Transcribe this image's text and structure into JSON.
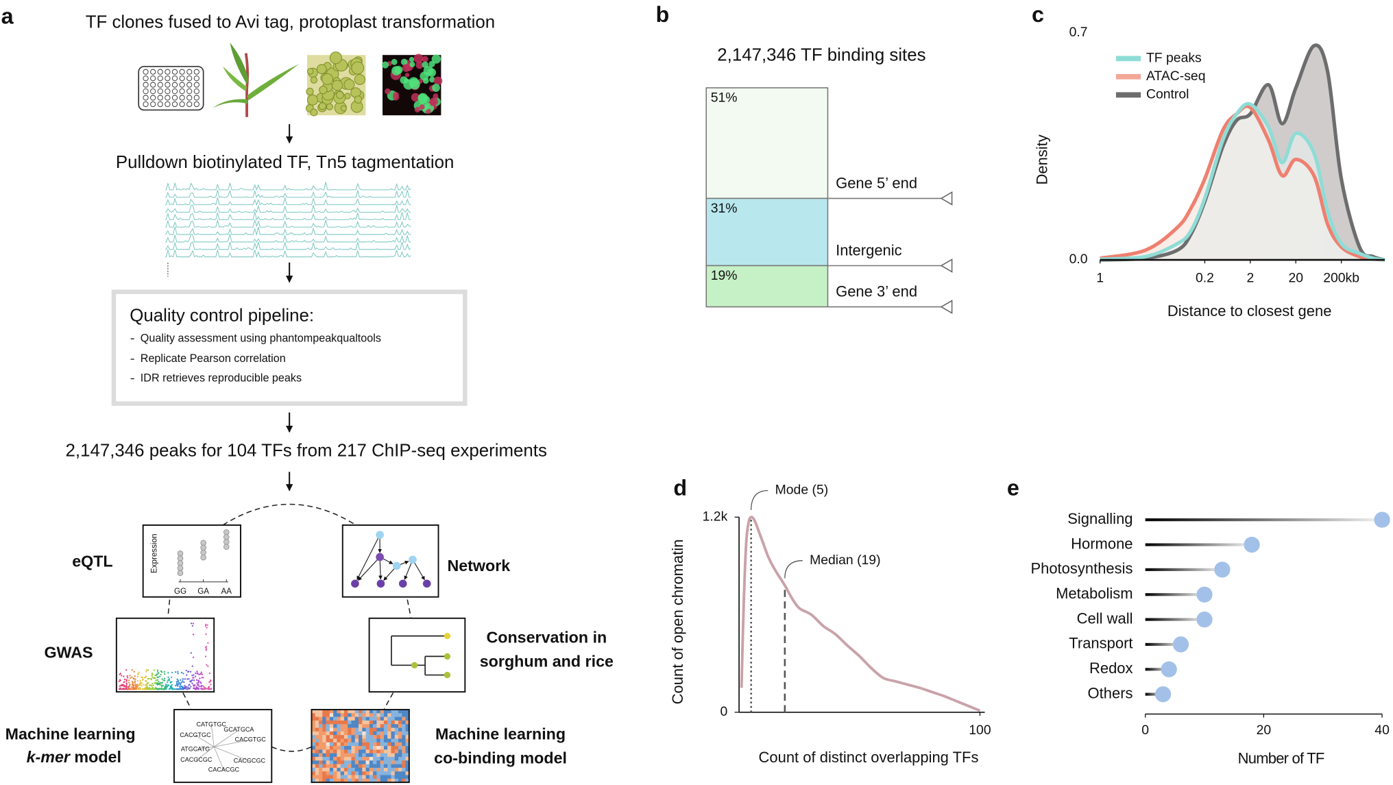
{
  "panel_labels": [
    "a",
    "b",
    "c",
    "d",
    "e"
  ],
  "workflow": {
    "steps": [
      "TF clones fused to Avi tag, protoplast transformation",
      "Pulldown biotinylated TF, Tn5 tagmentation"
    ],
    "qc": {
      "title": "Quality control pipeline:",
      "items": [
        "Quality assessment using phantompeakqualtools",
        "Replicate Pearson correlation",
        "IDR retrieves reproducible peaks"
      ]
    },
    "summary": "2,147,346 peaks for 104 TFs from 217 ChIP-seq experiments",
    "applications": {
      "eqtl": "eQTL",
      "network": "Network",
      "gwas": "GWAS",
      "conservation": [
        "Conservation in",
        "sorghum and rice"
      ],
      "kmer": {
        "line1": "Machine learning",
        "italic": "k-mer",
        "rest": " model"
      },
      "cobinding": [
        "Machine learning",
        "co-binding model"
      ]
    },
    "eqtl_inset": {
      "y_label": "Expression",
      "genotypes": [
        "GG",
        "GA",
        "AA"
      ]
    },
    "kmers": [
      "CATGTGC",
      "CACGTGC",
      "GCATGCA",
      "CACGTGC",
      "ATGCATG",
      "CACGCGC",
      "CACGCGC",
      "CACACGC"
    ]
  },
  "chart_data": [
    {
      "type": "stacked_box",
      "title": "2,147,346 TF binding sites",
      "categories": [
        "Gene 5’ end",
        "Intergenic",
        "Gene 3’ end"
      ],
      "values": [
        51,
        31,
        19
      ],
      "value_labels": [
        "51%",
        "31%",
        "19%"
      ],
      "colors": [
        "#f2faf1",
        "#b8e8ee",
        "#c6f0c6"
      ]
    },
    {
      "type": "density",
      "xlabel": "Distance to closest gene",
      "ylabel": "Density",
      "xscale": "log",
      "xlim": [
        1,
        1800000
      ],
      "xticks": [
        1,
        {
          "value": 200,
          "label": "0.2"
        },
        {
          "value": 2000,
          "label": "2"
        },
        {
          "value": 20000,
          "label": "20"
        },
        {
          "value": 200000,
          "label": "200kb"
        }
      ],
      "ylim": [
        0,
        0.7
      ],
      "yticks": [
        {
          "value": 0,
          "label": "0.0"
        },
        0.7
      ],
      "x": [
        1,
        10,
        50,
        100,
        200,
        500,
        1000,
        2000,
        5000,
        10000,
        20000,
        50000,
        100000,
        200000,
        500000,
        1000000,
        1800000
      ],
      "legend": "upper left",
      "series": [
        {
          "name": "TF peaks",
          "color": "#8fdcd6",
          "values": [
            0.002,
            0.01,
            0.05,
            0.09,
            0.19,
            0.37,
            0.45,
            0.48,
            0.41,
            0.3,
            0.39,
            0.33,
            0.15,
            0.05,
            0.02,
            0.005,
            0
          ]
        },
        {
          "name": "ATAC-seq",
          "color": "#f3a898",
          "values": [
            0.005,
            0.03,
            0.1,
            0.16,
            0.25,
            0.4,
            0.45,
            0.47,
            0.37,
            0.26,
            0.31,
            0.26,
            0.11,
            0.04,
            0.01,
            0.003,
            0
          ]
        },
        {
          "name": "Control",
          "color": "#6d6d6d",
          "values": [
            0,
            0.005,
            0.03,
            0.08,
            0.18,
            0.35,
            0.43,
            0.45,
            0.54,
            0.42,
            0.53,
            0.66,
            0.58,
            0.25,
            0.04,
            0.01,
            0
          ]
        }
      ]
    },
    {
      "type": "line",
      "xlabel": "Count of distinct overlapping TFs",
      "ylabel": "Count of open chromatin",
      "xlim": [
        0,
        102
      ],
      "xticks": [
        100
      ],
      "ylim": [
        0,
        1200
      ],
      "yticks": [
        0,
        {
          "value": 1200,
          "label": "1.2k"
        }
      ],
      "x": [
        1,
        2,
        3,
        4,
        5,
        6,
        7,
        8,
        9,
        10,
        12,
        14,
        16,
        19,
        22,
        25,
        30,
        35,
        40,
        45,
        50,
        55,
        60,
        65,
        70,
        75,
        80,
        85,
        90,
        95,
        100
      ],
      "values": [
        150,
        700,
        1050,
        1170,
        1200,
        1190,
        1160,
        1120,
        1080,
        1040,
        960,
        900,
        850,
        780,
        700,
        640,
        600,
        530,
        480,
        410,
        345,
        270,
        210,
        190,
        170,
        150,
        125,
        100,
        70,
        40,
        10
      ],
      "color": "#c9a2a9",
      "annotations": [
        {
          "text": "Mode (5)",
          "x": 5
        },
        {
          "text": "Median (19)",
          "x": 19
        }
      ]
    },
    {
      "type": "lollipop",
      "xlabel": "Number of TF",
      "categories": [
        "Signalling",
        "Hormone",
        "Photosynthesis",
        "Metabolism",
        "Cell wall",
        "Transport",
        "Redox",
        "Others"
      ],
      "values": [
        40,
        18,
        13,
        10,
        10,
        6,
        4,
        3
      ],
      "color": "#a3c1e8",
      "xlim": [
        0,
        40
      ],
      "xticks": [
        0,
        20,
        40
      ]
    }
  ]
}
